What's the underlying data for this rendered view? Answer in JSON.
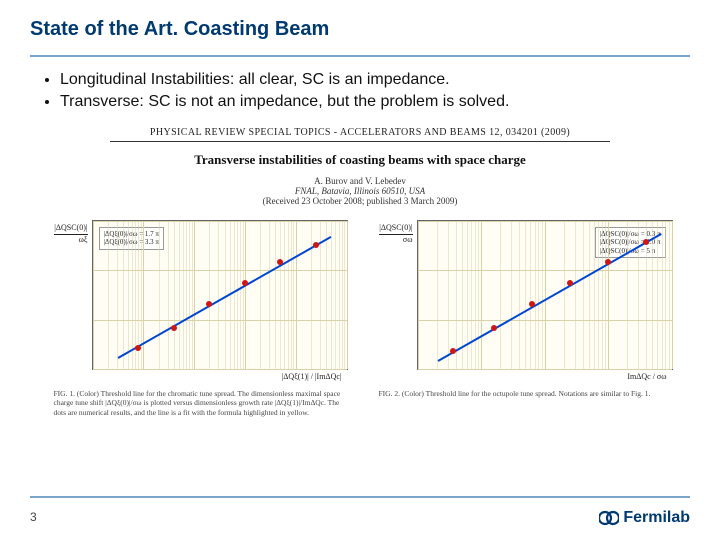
{
  "slide": {
    "title": "State of the Art. Coasting Beam",
    "page_number": "3",
    "accent_line_color": "#7ba4c9",
    "title_color": "#003a70",
    "bullets": [
      "Longitudinal Instabilities: all clear, SC is an impedance.",
      "Transverse: SC is not an impedance, but the problem is solved."
    ]
  },
  "paper": {
    "journal_line": "PHYSICAL REVIEW SPECIAL TOPICS - ACCELERATORS AND BEAMS   12, 034201 (2009)",
    "title": "Transverse instabilities of coasting beams with space charge",
    "authors": "A. Burov and V. Lebedev",
    "affiliation": "FNAL, Batavia, Illinois 60510, USA",
    "dates": "(Received 23 October 2008; published 3 March 2009)"
  },
  "fig1": {
    "type": "scatter-line-loglog",
    "ylabel_top": "|ΔQSC(0)|",
    "ylabel_bot": "ωξ",
    "xlabel": "|ΔQξ(1)| / |ImΔQc|",
    "ylim_log": [
      -1,
      2
    ],
    "xlim_log": [
      -1,
      4
    ],
    "legend": [
      "|ΔQξ(0)|/σω = 1.7 π",
      "|ΔQξ(0)|/σω = 3.3 π"
    ],
    "line_color": "#0046d1",
    "point_color": "#d01515",
    "grid_color": "#d9d2a8",
    "background_color": "#fffdf4",
    "points_frac": [
      {
        "x": 0.18,
        "y": 0.86
      },
      {
        "x": 0.32,
        "y": 0.72
      },
      {
        "x": 0.46,
        "y": 0.56
      },
      {
        "x": 0.6,
        "y": 0.42
      },
      {
        "x": 0.74,
        "y": 0.28
      },
      {
        "x": 0.88,
        "y": 0.16
      }
    ],
    "fit_line": {
      "x1": 0.1,
      "y1": 0.92,
      "x2": 0.94,
      "y2": 0.1
    },
    "caption": "FIG. 1. (Color) Threshold line for the chromatic tune spread. The dimensionless maximal space charge tune shift |ΔQξ(0)|/σω is plotted versus dimensionless growth rate |ΔQξ(1)|/ImΔQc. The dots are numerical results, and the line is a fit with the formula highlighted in yellow."
  },
  "fig2": {
    "type": "scatter-line-loglog",
    "ylabel_top": "|ΔQSC(0)|",
    "ylabel_bot": "σω",
    "xlabel": "ImΔQc / σω",
    "ylim_log": [
      -1,
      2
    ],
    "xlim_log": [
      -4,
      0
    ],
    "legend": [
      "|ΔQSC(0)|/σω = 0.3 π",
      "|ΔQSC(0)|/σω = 1.0 π",
      "|ΔQSC(0)|/σω = 5 π"
    ],
    "line_color": "#0046d1",
    "point_color": "#d01515",
    "grid_color": "#d9d2a8",
    "background_color": "#fffdf4",
    "points_frac": [
      {
        "x": 0.14,
        "y": 0.88
      },
      {
        "x": 0.3,
        "y": 0.72
      },
      {
        "x": 0.45,
        "y": 0.56
      },
      {
        "x": 0.6,
        "y": 0.42
      },
      {
        "x": 0.75,
        "y": 0.28
      },
      {
        "x": 0.9,
        "y": 0.14
      }
    ],
    "fit_line": {
      "x1": 0.08,
      "y1": 0.94,
      "x2": 0.96,
      "y2": 0.08
    },
    "caption": "FIG. 2. (Color) Threshold line for the octupole tune spread. Notations are similar to Fig. 1."
  },
  "footer": {
    "logo_text": "Fermilab",
    "logo_color": "#003a70"
  }
}
